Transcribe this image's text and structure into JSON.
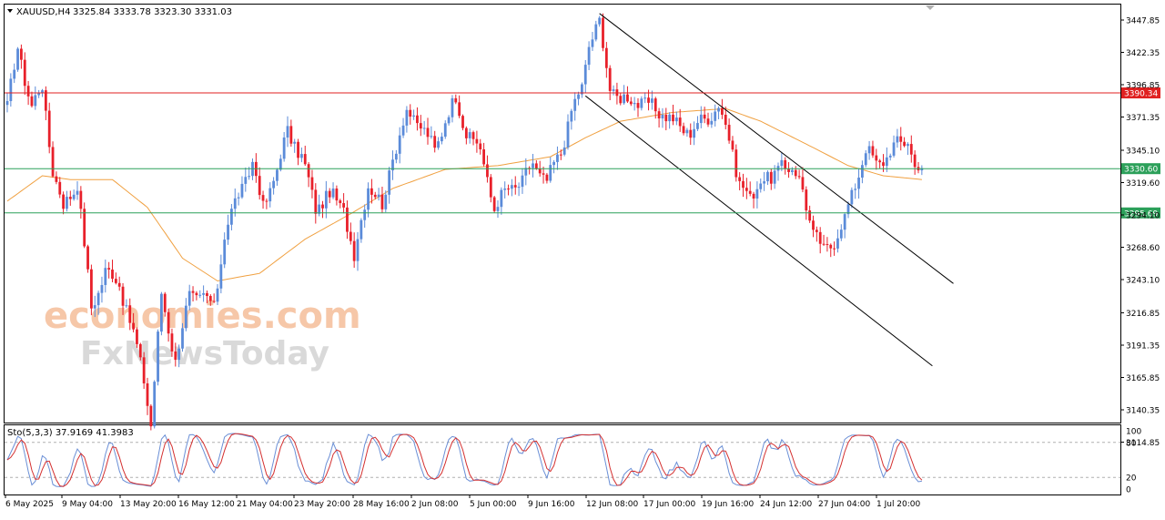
{
  "header": {
    "symbol": "XAUUSD,H4",
    "ohlc": "3325.84 3333.78 3323.30 3331.03"
  },
  "watermark": {
    "line1": "economies.com",
    "line2": "FxNewsToday"
  },
  "colors": {
    "bull": "#5b8bd9",
    "bear": "#e8202a",
    "ma": "#f0a040",
    "resistance": "#e02020",
    "support": "#2ca05a",
    "channel": "#000000",
    "sto_main": "#6a8fd6",
    "sto_signal": "#d43030"
  },
  "stochastic": {
    "label": "Sto(5,3,3) 37.9169 41.3983",
    "levels": [
      80,
      20
    ],
    "axis_ticks": [
      "100",
      "80",
      "20",
      "0"
    ]
  },
  "chart_data": {
    "type": "candlestick",
    "symbol": "XAUUSD",
    "timeframe": "H4",
    "ylim": [
      3110,
      3455
    ],
    "y_ticks": [
      3447.85,
      3422.35,
      3396.85,
      3371.35,
      3345.1,
      3319.6,
      3294.1,
      3268.6,
      3243.1,
      3216.85,
      3191.35,
      3165.85,
      3140.35,
      3114.85
    ],
    "x_ticks": [
      "6 May 2025",
      "9 May 04:00",
      "13 May 20:00",
      "16 May 12:00",
      "21 May 04:00",
      "23 May 20:00",
      "28 May 16:00",
      "2 Jun 08:00",
      "5 Jun 00:00",
      "9 Jun 16:00",
      "12 Jun 08:00",
      "17 Jun 00:00",
      "19 Jun 16:00",
      "24 Jun 12:00",
      "27 Jun 04:00",
      "1 Jul 20:00"
    ],
    "horizontal_levels": [
      {
        "value": 3390.34,
        "label": "3390.34",
        "role": "resistance"
      },
      {
        "value": 3330.6,
        "label": "3330.60",
        "role": "current"
      },
      {
        "value": 3295.69,
        "label": "3295.69",
        "role": "support"
      }
    ],
    "channel": {
      "upper": {
        "from": {
          "bar": 169,
          "price": 3453
        },
        "to": {
          "bar": 270,
          "price": 3240
        }
      },
      "lower": {
        "from": {
          "bar": 165,
          "price": 3388
        },
        "to": {
          "bar": 264,
          "price": 3175
        }
      }
    },
    "anchors": [
      {
        "bar": 0,
        "price": 3380
      },
      {
        "bar": 3,
        "price": 3425
      },
      {
        "bar": 7,
        "price": 3380
      },
      {
        "bar": 10,
        "price": 3395
      },
      {
        "bar": 13,
        "price": 3330
      },
      {
        "bar": 16,
        "price": 3300
      },
      {
        "bar": 20,
        "price": 3320
      },
      {
        "bar": 24,
        "price": 3220
      },
      {
        "bar": 28,
        "price": 3250
      },
      {
        "bar": 32,
        "price": 3240
      },
      {
        "bar": 36,
        "price": 3200
      },
      {
        "bar": 39,
        "price": 3165
      },
      {
        "bar": 41,
        "price": 3130
      },
      {
        "bar": 44,
        "price": 3230
      },
      {
        "bar": 48,
        "price": 3180
      },
      {
        "bar": 52,
        "price": 3230
      },
      {
        "bar": 56,
        "price": 3230
      },
      {
        "bar": 59,
        "price": 3220
      },
      {
        "bar": 62,
        "price": 3280
      },
      {
        "bar": 66,
        "price": 3310
      },
      {
        "bar": 70,
        "price": 3335
      },
      {
        "bar": 73,
        "price": 3300
      },
      {
        "bar": 77,
        "price": 3330
      },
      {
        "bar": 80,
        "price": 3360
      },
      {
        "bar": 84,
        "price": 3340
      },
      {
        "bar": 88,
        "price": 3300
      },
      {
        "bar": 92,
        "price": 3310
      },
      {
        "bar": 96,
        "price": 3300
      },
      {
        "bar": 99,
        "price": 3260
      },
      {
        "bar": 103,
        "price": 3320
      },
      {
        "bar": 107,
        "price": 3300
      },
      {
        "bar": 110,
        "price": 3340
      },
      {
        "bar": 114,
        "price": 3375
      },
      {
        "bar": 118,
        "price": 3365
      },
      {
        "bar": 122,
        "price": 3345
      },
      {
        "bar": 125,
        "price": 3370
      },
      {
        "bar": 128,
        "price": 3385
      },
      {
        "bar": 131,
        "price": 3360
      },
      {
        "bar": 135,
        "price": 3345
      },
      {
        "bar": 139,
        "price": 3300
      },
      {
        "bar": 143,
        "price": 3315
      },
      {
        "bar": 147,
        "price": 3320
      },
      {
        "bar": 150,
        "price": 3335
      },
      {
        "bar": 154,
        "price": 3320
      },
      {
        "bar": 158,
        "price": 3345
      },
      {
        "bar": 161,
        "price": 3375
      },
      {
        "bar": 164,
        "price": 3395
      },
      {
        "bar": 166,
        "price": 3430
      },
      {
        "bar": 169,
        "price": 3445
      },
      {
        "bar": 172,
        "price": 3395
      },
      {
        "bar": 175,
        "price": 3385
      },
      {
        "bar": 179,
        "price": 3385
      },
      {
        "bar": 183,
        "price": 3380
      },
      {
        "bar": 187,
        "price": 3375
      },
      {
        "bar": 191,
        "price": 3365
      },
      {
        "bar": 195,
        "price": 3360
      },
      {
        "bar": 199,
        "price": 3370
      },
      {
        "bar": 203,
        "price": 3380
      },
      {
        "bar": 206,
        "price": 3355
      },
      {
        "bar": 209,
        "price": 3320
      },
      {
        "bar": 212,
        "price": 3305
      },
      {
        "bar": 215,
        "price": 3325
      },
      {
        "bar": 218,
        "price": 3320
      },
      {
        "bar": 221,
        "price": 3335
      },
      {
        "bar": 224,
        "price": 3330
      },
      {
        "bar": 227,
        "price": 3315
      },
      {
        "bar": 230,
        "price": 3280
      },
      {
        "bar": 233,
        "price": 3265
      },
      {
        "bar": 236,
        "price": 3275
      },
      {
        "bar": 239,
        "price": 3290
      },
      {
        "bar": 242,
        "price": 3320
      },
      {
        "bar": 245,
        "price": 3345
      },
      {
        "bar": 248,
        "price": 3335
      },
      {
        "bar": 251,
        "price": 3340
      },
      {
        "bar": 254,
        "price": 3350
      },
      {
        "bar": 257,
        "price": 3355
      },
      {
        "bar": 259,
        "price": 3330
      },
      {
        "bar": 261,
        "price": 3331
      }
    ],
    "ma_anchors": [
      {
        "bar": 0,
        "price": 3305
      },
      {
        "bar": 10,
        "price": 3325
      },
      {
        "bar": 18,
        "price": 3322
      },
      {
        "bar": 30,
        "price": 3322
      },
      {
        "bar": 40,
        "price": 3300
      },
      {
        "bar": 50,
        "price": 3260
      },
      {
        "bar": 60,
        "price": 3242
      },
      {
        "bar": 72,
        "price": 3248
      },
      {
        "bar": 85,
        "price": 3275
      },
      {
        "bar": 98,
        "price": 3295
      },
      {
        "bar": 110,
        "price": 3315
      },
      {
        "bar": 125,
        "price": 3330
      },
      {
        "bar": 140,
        "price": 3333
      },
      {
        "bar": 155,
        "price": 3340
      },
      {
        "bar": 165,
        "price": 3355
      },
      {
        "bar": 175,
        "price": 3368
      },
      {
        "bar": 190,
        "price": 3375
      },
      {
        "bar": 205,
        "price": 3378
      },
      {
        "bar": 215,
        "price": 3368
      },
      {
        "bar": 228,
        "price": 3350
      },
      {
        "bar": 240,
        "price": 3333
      },
      {
        "bar": 250,
        "price": 3325
      },
      {
        "bar": 261,
        "price": 3322
      }
    ]
  }
}
